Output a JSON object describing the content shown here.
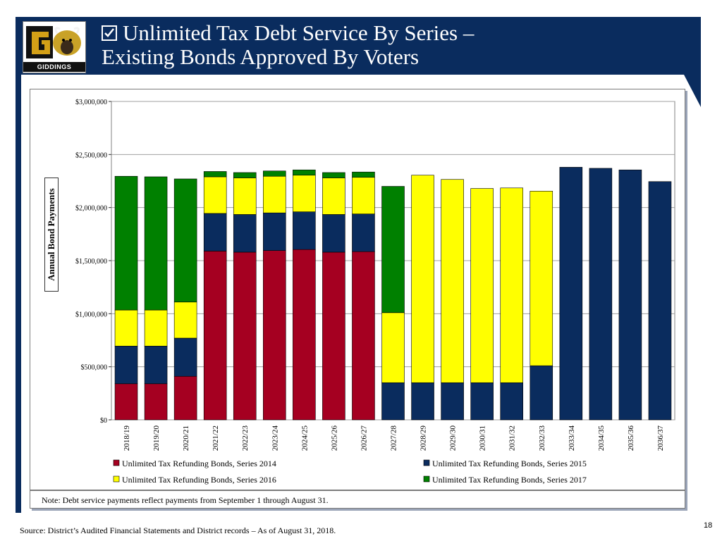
{
  "header": {
    "title_line1": "Unlimited Tax Debt Service By Series –",
    "title_line2": "Existing Bonds Approved By Voters",
    "logo_text": "GIDDINGS"
  },
  "colors": {
    "series_2014": "#a50021",
    "series_2015": "#0a2c5e",
    "series_2016": "#ffff00",
    "series_2017": "#008000",
    "header_bg": "#0a2c5e"
  },
  "chart_data": {
    "type": "bar",
    "stacked": true,
    "ylabel": "Annual Bond Payments",
    "ylim": [
      0,
      3000000
    ],
    "yticks": [
      0,
      500000,
      1000000,
      1500000,
      2000000,
      2500000,
      3000000
    ],
    "ytick_labels": [
      "$0",
      "$500,000",
      "$1,000,000",
      "$1,500,000",
      "$2,000,000",
      "$2,500,000",
      "$3,000,000"
    ],
    "categories": [
      "2018/19",
      "2019/20",
      "2020/21",
      "2021/22",
      "2022/23",
      "2023/24",
      "2024/25",
      "2025/26",
      "2026/27",
      "2027/28",
      "2028/29",
      "2029/30",
      "2030/31",
      "2031/32",
      "2032/33",
      "2033/34",
      "2034/35",
      "2035/36",
      "2036/37"
    ],
    "series": [
      {
        "name": "Unlimited Tax Refunding Bonds, Series 2014",
        "color": "#a50021",
        "values": [
          340000,
          340000,
          410000,
          1590000,
          1580000,
          1595000,
          1605000,
          1580000,
          1585000,
          0,
          0,
          0,
          0,
          0,
          0,
          0,
          0,
          0,
          0
        ]
      },
      {
        "name": "Unlimited Tax Refunding Bonds, Series 2015",
        "color": "#0a2c5e",
        "values": [
          355000,
          355000,
          360000,
          355000,
          355000,
          355000,
          355000,
          355000,
          355000,
          350000,
          350000,
          350000,
          350000,
          350000,
          510000,
          2380000,
          2370000,
          2355000,
          2245000
        ]
      },
      {
        "name": "Unlimited Tax Refunding Bonds, Series 2016",
        "color": "#ffff00",
        "values": [
          340000,
          340000,
          340000,
          345000,
          345000,
          345000,
          345000,
          345000,
          345000,
          660000,
          1955000,
          1915000,
          1830000,
          1835000,
          1645000,
          0,
          0,
          0,
          0
        ]
      },
      {
        "name": "Unlimited Tax Refunding Bonds, Series 2017",
        "color": "#008000",
        "values": [
          1260000,
          1255000,
          1160000,
          50000,
          50000,
          50000,
          50000,
          50000,
          50000,
          1190000,
          0,
          0,
          0,
          0,
          0,
          0,
          0,
          0,
          0
        ]
      }
    ],
    "legend": [
      "Unlimited Tax Refunding Bonds, Series 2014",
      "Unlimited Tax Refunding Bonds, Series 2015",
      "Unlimited Tax Refunding Bonds, Series 2016",
      "Unlimited Tax Refunding Bonds, Series 2017"
    ]
  },
  "note": "Note: Debt service payments reflect payments from September 1 through August 31.",
  "source": "Source: District’s Audited Financial Statements and District records – As of August 31, 2018.",
  "page_number": "18"
}
